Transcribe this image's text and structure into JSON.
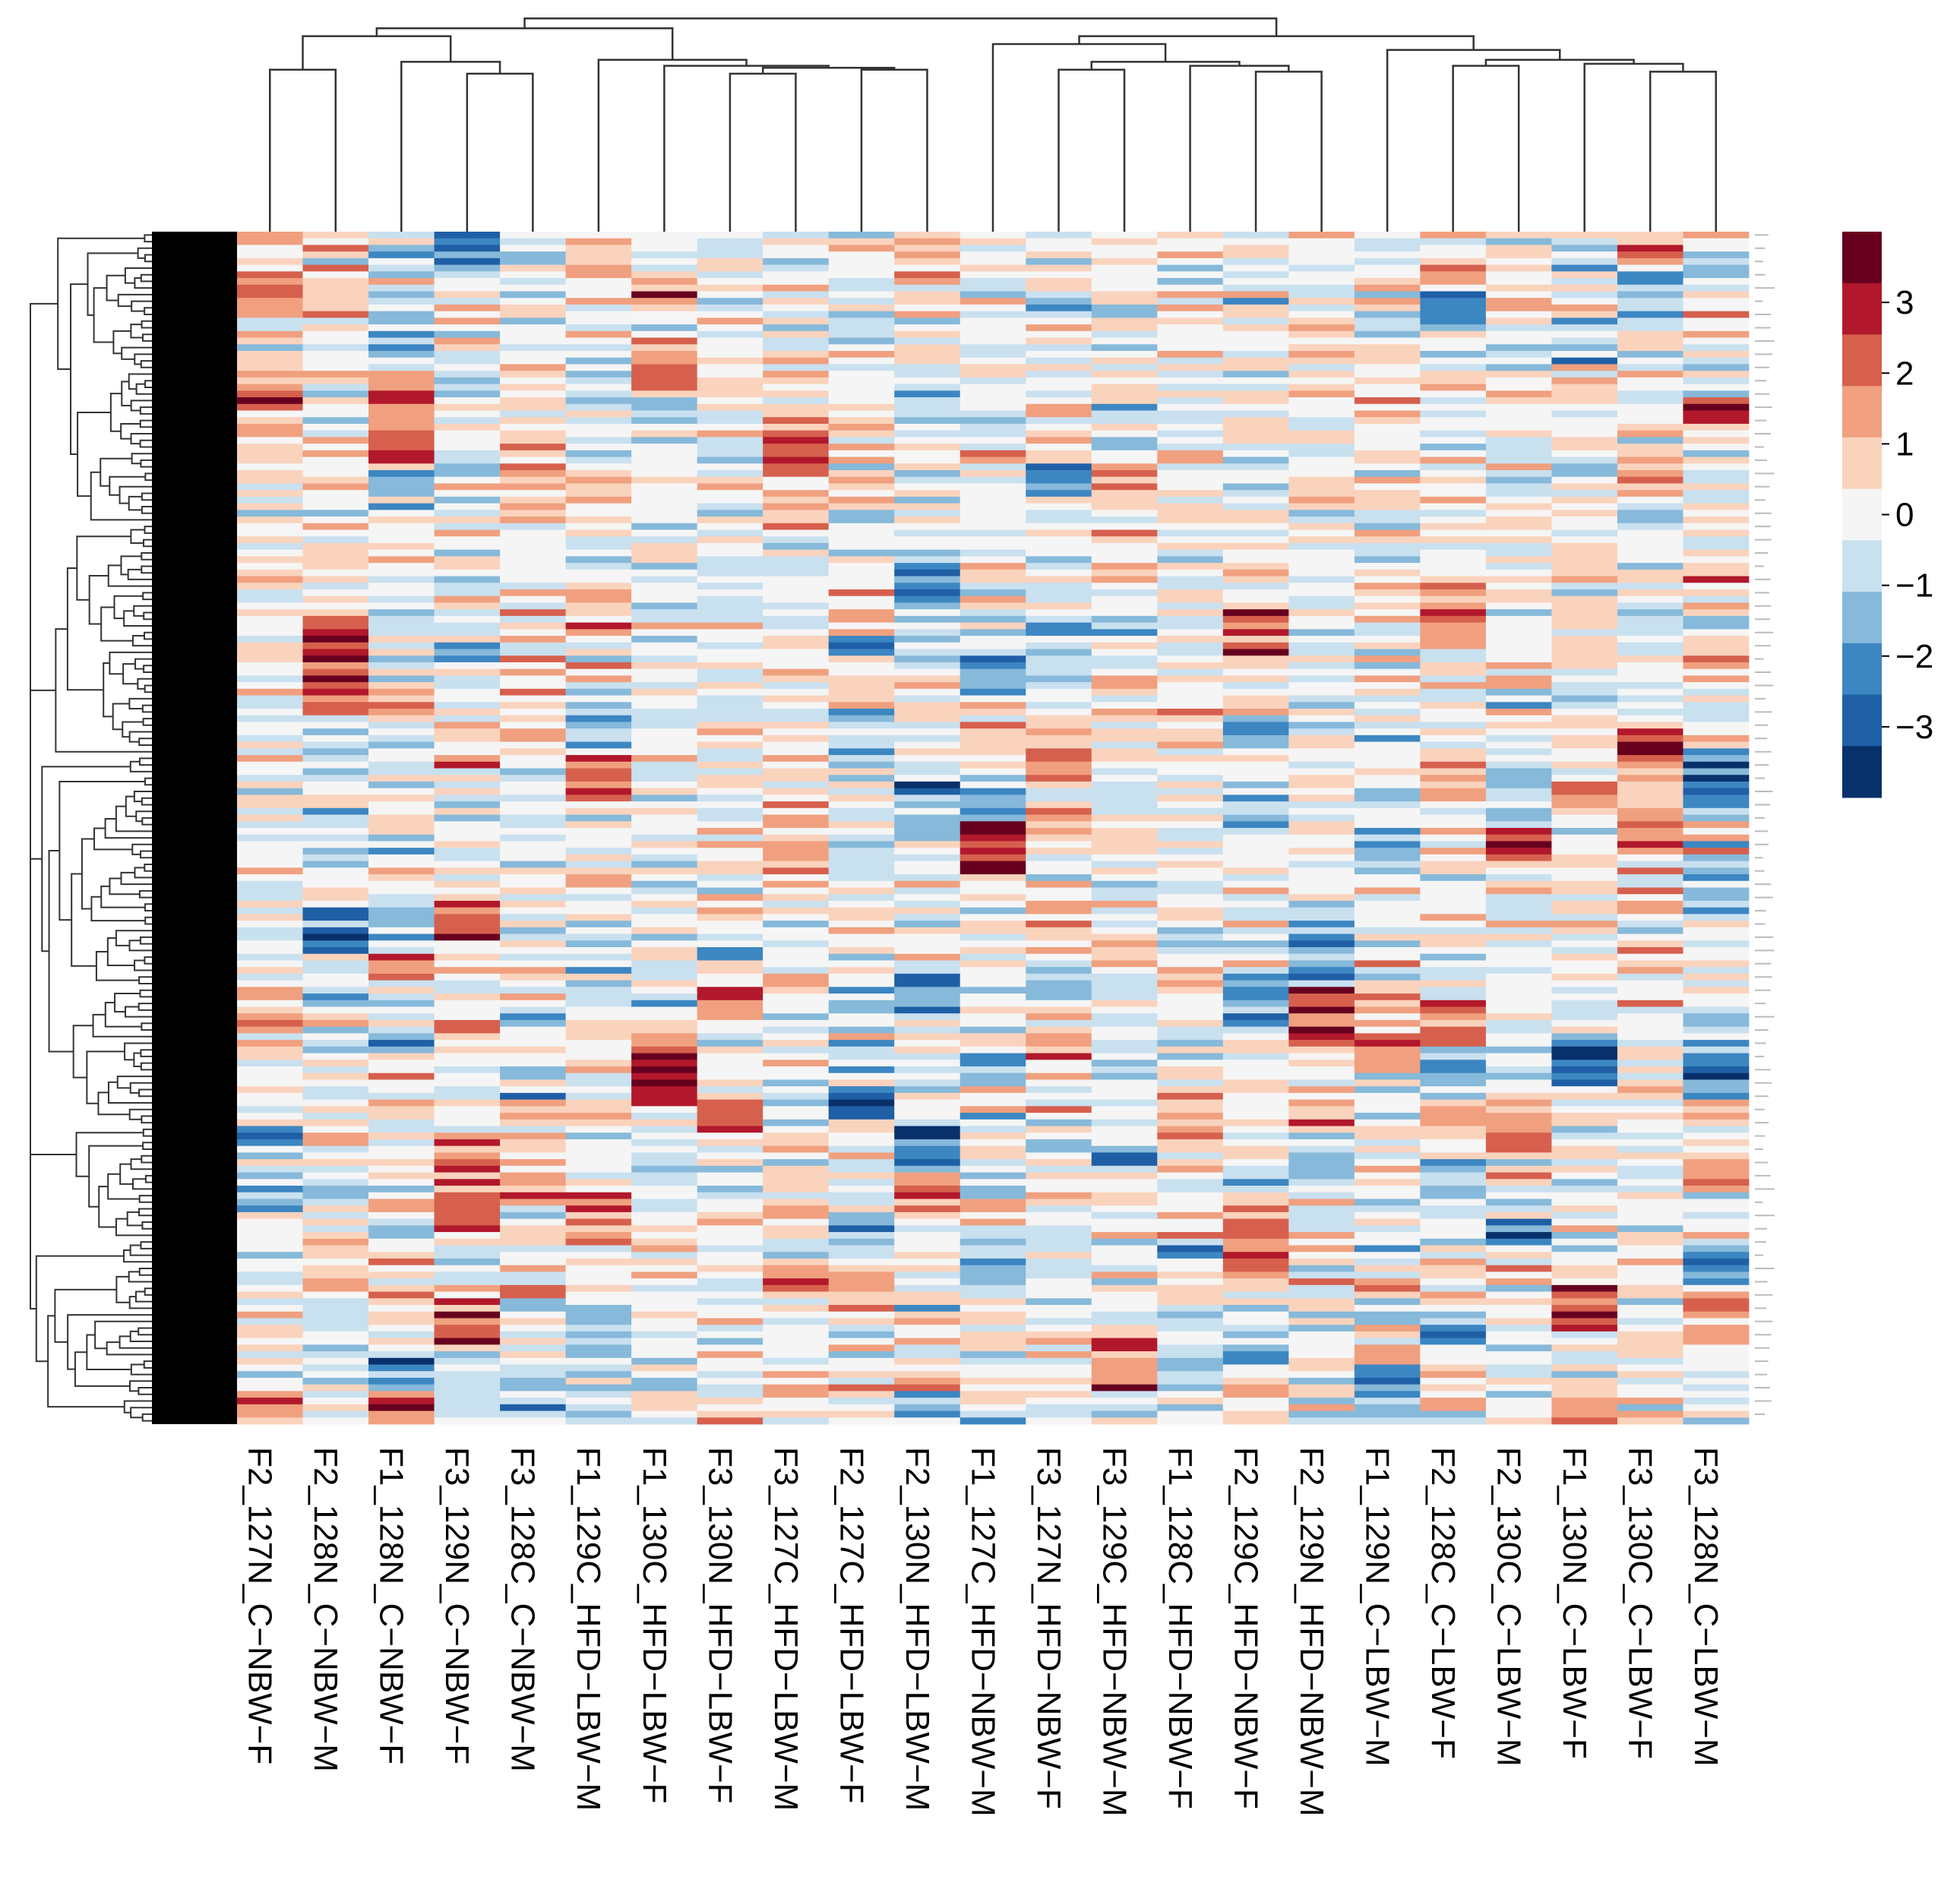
{
  "chart_data": {
    "type": "heatmap",
    "title": "",
    "columns": [
      "F2_127N_C−NBW−F",
      "F2_128N_C−NBW−M",
      "F1_128N_C−NBW−F",
      "F3_129N_C−NBW−F",
      "F3_128C_C−NBW−M",
      "F1_129C_HFD−LBW−M",
      "F1_130C_HFD−LBW−F",
      "F3_130N_HFD−LBW−F",
      "F3_127C_HFD−LBW−M",
      "F2_127C_HFD−LBW−F",
      "F2_130N_HFD−LBW−M",
      "F1_127C_HFD−NBW−M",
      "F3_127N_HFD−NBW−F",
      "F3_129C_HFD−NBW−M",
      "F1_128C_HFD−NBW−F",
      "F2_129C_HFD−NBW−F",
      "F2_129N_HFD−NBW−M",
      "F1_129N_C−LBW−M",
      "F2_128C_C−LBW−F",
      "F2_130C_C−LBW−M",
      "F1_130N_C−LBW−F",
      "F3_130C_C−LBW−F",
      "F3_128N_C−LBW−M"
    ],
    "row_count": 180,
    "color_scale": {
      "min": -4,
      "max": 4,
      "ticks": [
        3,
        2,
        1,
        0,
        -1,
        -2,
        -3
      ],
      "tick_labels": [
        "3",
        "2",
        "1",
        "0",
        "−1",
        "−2",
        "−3"
      ],
      "colors": [
        "#08306B",
        "#1F5FA6",
        "#3C86C2",
        "#86B9DA",
        "#C9E0EF",
        "#F5F5F5",
        "#FAD3BD",
        "#F0A07F",
        "#D6604D",
        "#B2182B",
        "#67001F"
      ]
    },
    "column_dendrogram": "present",
    "row_dendrogram": "present",
    "seed": 20240517
  }
}
